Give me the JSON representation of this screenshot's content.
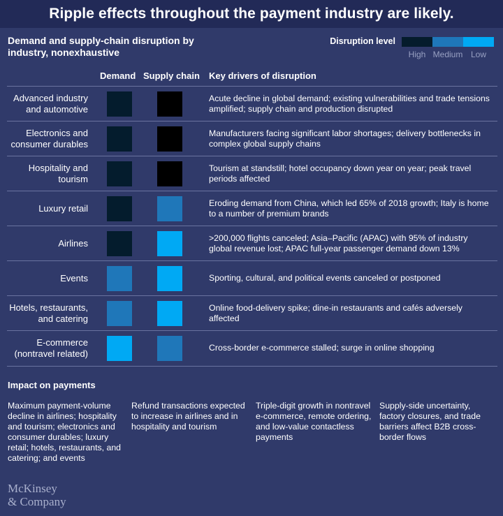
{
  "banner_title": "Ripple effects throughout the payment industry are likely.",
  "colors": {
    "background": "#303a6a",
    "banner": "#222a57",
    "divider": "#6a73a0"
  },
  "chart_data": {
    "type": "table",
    "title": "Demand and supply-chain disruption by industry, nonexhaustive",
    "legend": {
      "title": "Disruption level",
      "levels": [
        {
          "label": "High",
          "color": "#051c2c"
        },
        {
          "label": "Medium",
          "color": "#1f77b9"
        },
        {
          "label": "Low",
          "color": "#00a9f4"
        }
      ]
    },
    "columns": [
      "Demand",
      "Supply chain",
      "Key drivers of disruption"
    ],
    "rows": [
      {
        "industry": "Advanced industry and automotive",
        "demand": "High",
        "supply_chain": "High",
        "demand_color": "#041c2d",
        "supply_color": "#000000",
        "drivers": "Acute decline in global demand; existing vulnerabilities and trade tensions amplified; supply chain and production disrupted"
      },
      {
        "industry": "Electronics and consumer durables",
        "demand": "High",
        "supply_chain": "High",
        "demand_color": "#041c2d",
        "supply_color": "#000000",
        "drivers": "Manufacturers facing significant labor shortages; delivery bottlenecks in complex global supply chains"
      },
      {
        "industry": "Hospitality and tourism",
        "demand": "High",
        "supply_chain": "High",
        "demand_color": "#041c2d",
        "supply_color": "#000000",
        "drivers": "Tourism at standstill; hotel occupancy down year on year; peak travel periods affected"
      },
      {
        "industry": "Luxury retail",
        "demand": "High",
        "supply_chain": "Medium",
        "demand_color": "#041c2d",
        "supply_color": "#1f77b9",
        "drivers": "Eroding demand from China, which led 65% of 2018 growth; Italy is home to a number of premium brands"
      },
      {
        "industry": "Airlines",
        "demand": "High",
        "supply_chain": "Low",
        "demand_color": "#041c2d",
        "supply_color": "#00a9f4",
        "drivers": ">200,000 flights canceled; Asia–Pacific (APAC) with 95% of industry global revenue lost; APAC full-year passenger demand down 13%"
      },
      {
        "industry": "Events",
        "demand": "Medium",
        "supply_chain": "Low",
        "demand_color": "#1f77b9",
        "supply_color": "#00a9f4",
        "drivers": "Sporting, cultural, and political events canceled or postponed"
      },
      {
        "industry": "Hotels, restaurants, and catering",
        "demand": "Medium",
        "supply_chain": "Low",
        "demand_color": "#1f77b9",
        "supply_color": "#00a9f4",
        "drivers": "Online food-delivery spike; dine-in restaurants and cafés adversely affected"
      },
      {
        "industry": "E-commerce (nontravel related)",
        "demand": "Low",
        "supply_chain": "Medium",
        "demand_color": "#00a9f4",
        "supply_color": "#1f77b9",
        "drivers": "Cross-border e-commerce stalled; surge in online shopping"
      }
    ]
  },
  "impact": {
    "title": "Impact on payments",
    "items": [
      "Maximum payment-volume decline in airlines; hospitality and tourism; electronics and consumer durables; luxury retail; hotels, restaurants, and catering; and events",
      "Refund transactions expected to increase in airlines and in hospitality and tourism",
      "Triple-digit growth in nontravel e-commerce, remote ordering, and low-value contactless payments",
      "Supply-side uncertainty, factory closures, and trade barriers affect B2B cross-border flows"
    ]
  },
  "logo": {
    "line1": "McKinsey",
    "line2": "& Company"
  }
}
